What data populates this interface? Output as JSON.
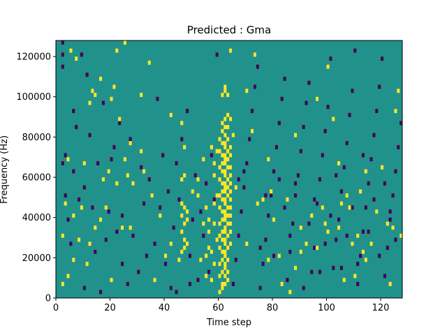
{
  "chart_data": {
    "type": "heatmap",
    "title": "Predicted : Gma",
    "xlabel": "Time step",
    "ylabel": "Frequency (Hz)",
    "xlim": [
      0,
      128
    ],
    "ylim": [
      0,
      128000
    ],
    "xticks": [
      0,
      20,
      40,
      60,
      80,
      100,
      120
    ],
    "yticks": [
      0,
      20000,
      40000,
      60000,
      80000,
      100000,
      120000
    ],
    "grid": false,
    "colors": {
      "background": "#21918c",
      "low": "#440154",
      "high": "#fde725"
    },
    "cell": {
      "time_step_width": 1,
      "frequency_height": 2000
    },
    "high_cells": [
      [
        60,
        2000
      ],
      [
        61,
        4000
      ],
      [
        61,
        6000
      ],
      [
        60,
        10000
      ],
      [
        61,
        12000
      ],
      [
        62,
        14000
      ],
      [
        60,
        16000
      ],
      [
        61,
        18000
      ],
      [
        62,
        20000
      ],
      [
        61,
        22000
      ],
      [
        60,
        24000
      ],
      [
        62,
        26000
      ],
      [
        61,
        28000
      ],
      [
        60,
        30000
      ],
      [
        61,
        32000
      ],
      [
        62,
        34000
      ],
      [
        60,
        36000
      ],
      [
        61,
        38000
      ],
      [
        62,
        40000
      ],
      [
        61,
        42000
      ],
      [
        60,
        44000
      ],
      [
        62,
        46000
      ],
      [
        61,
        48000
      ],
      [
        60,
        50000
      ],
      [
        61,
        52000
      ],
      [
        62,
        54000
      ],
      [
        61,
        56000
      ],
      [
        60,
        58000
      ],
      [
        62,
        60000
      ],
      [
        61,
        62000
      ],
      [
        60,
        64000
      ],
      [
        61,
        66000
      ],
      [
        62,
        68000
      ],
      [
        61,
        70000
      ],
      [
        60,
        72000
      ],
      [
        62,
        74000
      ],
      [
        61,
        76000
      ],
      [
        60,
        78000
      ],
      [
        61,
        82000
      ],
      [
        62,
        84000
      ],
      [
        61,
        86000
      ],
      [
        62,
        88000
      ],
      [
        61,
        100000
      ],
      [
        62,
        102000
      ],
      [
        62,
        104000
      ],
      [
        62,
        6000
      ],
      [
        63,
        8000
      ],
      [
        62,
        10000
      ],
      [
        63,
        12000
      ],
      [
        62,
        16000
      ],
      [
        63,
        18000
      ],
      [
        62,
        22000
      ],
      [
        63,
        24000
      ],
      [
        62,
        28000
      ],
      [
        63,
        30000
      ],
      [
        62,
        32000
      ],
      [
        63,
        36000
      ],
      [
        62,
        38000
      ],
      [
        63,
        40000
      ],
      [
        62,
        42000
      ],
      [
        63,
        44000
      ],
      [
        62,
        48000
      ],
      [
        63,
        50000
      ],
      [
        62,
        52000
      ],
      [
        63,
        54000
      ],
      [
        62,
        56000
      ],
      [
        63,
        58000
      ],
      [
        62,
        62000
      ],
      [
        63,
        64000
      ],
      [
        62,
        66000
      ],
      [
        63,
        68000
      ],
      [
        62,
        70000
      ],
      [
        63,
        72000
      ],
      [
        62,
        76000
      ],
      [
        63,
        78000
      ],
      [
        62,
        80000
      ],
      [
        63,
        84000
      ],
      [
        63,
        90000
      ],
      [
        63,
        100000
      ],
      [
        64,
        26000
      ],
      [
        64,
        32000
      ],
      [
        64,
        36000
      ],
      [
        64,
        40000
      ],
      [
        64,
        44000
      ],
      [
        64,
        48000
      ],
      [
        64,
        52000
      ],
      [
        64,
        56000
      ],
      [
        64,
        60000
      ],
      [
        64,
        64000
      ],
      [
        64,
        70000
      ],
      [
        64,
        74000
      ],
      [
        64,
        88000
      ],
      [
        64,
        122000
      ],
      [
        46,
        22000
      ],
      [
        47,
        24000
      ],
      [
        47,
        28000
      ],
      [
        46,
        32000
      ],
      [
        47,
        36000
      ],
      [
        46,
        40000
      ],
      [
        47,
        44000
      ],
      [
        46,
        46000
      ],
      [
        48,
        38000
      ],
      [
        48,
        26000
      ],
      [
        46,
        58000
      ],
      [
        47,
        60000
      ],
      [
        52,
        50000
      ],
      [
        48,
        42000
      ],
      [
        56,
        38000
      ],
      [
        58,
        36000
      ],
      [
        56,
        32000
      ],
      [
        56,
        24000
      ],
      [
        55,
        20000
      ],
      [
        57,
        22000
      ],
      [
        55,
        10000
      ],
      [
        57,
        8000
      ],
      [
        53,
        18000
      ],
      [
        54,
        36000
      ],
      [
        59,
        28000
      ],
      [
        58,
        16000
      ],
      [
        55,
        44000
      ],
      [
        59,
        50000
      ],
      [
        58,
        66000
      ],
      [
        57,
        74000
      ],
      [
        58,
        60000
      ],
      [
        2,
        6000
      ],
      [
        2,
        30000
      ],
      [
        4,
        10000
      ],
      [
        3,
        46000
      ],
      [
        4,
        68000
      ],
      [
        6,
        18000
      ],
      [
        8,
        28000
      ],
      [
        6,
        40000
      ],
      [
        5,
        122000
      ],
      [
        7,
        118000
      ],
      [
        9,
        44000
      ],
      [
        10,
        66000
      ],
      [
        12,
        96000
      ],
      [
        11,
        16000
      ],
      [
        12,
        26000
      ],
      [
        13,
        102000
      ],
      [
        14,
        100000
      ],
      [
        14,
        34000
      ],
      [
        16,
        38000
      ],
      [
        16,
        108000
      ],
      [
        17,
        58000
      ],
      [
        18,
        44000
      ],
      [
        19,
        62000
      ],
      [
        20,
        98000
      ],
      [
        20,
        8000
      ],
      [
        22,
        56000
      ],
      [
        21,
        104000
      ],
      [
        22,
        122000
      ],
      [
        24,
        34000
      ],
      [
        23,
        88000
      ],
      [
        25,
        68000
      ],
      [
        25,
        126000
      ],
      [
        26,
        60000
      ],
      [
        27,
        76000
      ],
      [
        27,
        34000
      ],
      [
        28,
        56000
      ],
      [
        31,
        72000
      ],
      [
        31,
        100000
      ],
      [
        32,
        62000
      ],
      [
        35,
        50000
      ],
      [
        34,
        116000
      ],
      [
        36,
        8000
      ],
      [
        38,
        40000
      ],
      [
        40,
        20000
      ],
      [
        42,
        26000
      ],
      [
        42,
        90000
      ],
      [
        45,
        18000
      ],
      [
        46,
        86000
      ],
      [
        47,
        74000
      ],
      [
        50,
        52000
      ],
      [
        52,
        58000
      ],
      [
        54,
        68000
      ],
      [
        58,
        46000
      ],
      [
        59,
        72000
      ],
      [
        65,
        80000
      ],
      [
        66,
        54000
      ],
      [
        70,
        26000
      ],
      [
        70,
        102000
      ],
      [
        72,
        82000
      ],
      [
        73,
        120000
      ],
      [
        74,
        46000
      ],
      [
        76,
        48000
      ],
      [
        78,
        18000
      ],
      [
        79,
        52000
      ],
      [
        78,
        68000
      ],
      [
        80,
        38000
      ],
      [
        82,
        20000
      ],
      [
        83,
        6000
      ],
      [
        86,
        2000
      ],
      [
        85,
        48000
      ],
      [
        88,
        14000
      ],
      [
        90,
        22000
      ],
      [
        94,
        40000
      ],
      [
        96,
        98000
      ],
      [
        98,
        44000
      ],
      [
        99,
        36000
      ],
      [
        100,
        32000
      ],
      [
        100,
        114000
      ],
      [
        102,
        88000
      ],
      [
        104,
        34000
      ],
      [
        104,
        66000
      ],
      [
        106,
        8000
      ],
      [
        107,
        50000
      ],
      [
        108,
        44000
      ],
      [
        110,
        10000
      ],
      [
        112,
        52000
      ],
      [
        114,
        18000
      ],
      [
        116,
        26000
      ],
      [
        118,
        42000
      ],
      [
        120,
        64000
      ],
      [
        122,
        36000
      ],
      [
        123,
        6000
      ],
      [
        124,
        34000
      ],
      [
        125,
        92000
      ],
      [
        126,
        102000
      ],
      [
        127,
        30000
      ],
      [
        114,
        62000
      ],
      [
        88,
        80000
      ],
      [
        90,
        34000
      ],
      [
        92,
        26000
      ],
      [
        96,
        24000
      ],
      [
        105,
        46000
      ],
      [
        109,
        26000
      ],
      [
        111,
        30000
      ],
      [
        113,
        22000
      ]
    ],
    "low_cells": [
      [
        2,
        120000
      ],
      [
        2,
        126000
      ],
      [
        2,
        114000
      ],
      [
        3,
        70000
      ],
      [
        2,
        66000
      ],
      [
        3,
        50000
      ],
      [
        4,
        38000
      ],
      [
        5,
        26000
      ],
      [
        6,
        92000
      ],
      [
        7,
        84000
      ],
      [
        6,
        62000
      ],
      [
        8,
        48000
      ],
      [
        9,
        120000
      ],
      [
        10,
        4000
      ],
      [
        10,
        54000
      ],
      [
        11,
        110000
      ],
      [
        12,
        80000
      ],
      [
        13,
        44000
      ],
      [
        14,
        22000
      ],
      [
        15,
        66000
      ],
      [
        16,
        2000
      ],
      [
        17,
        96000
      ],
      [
        18,
        28000
      ],
      [
        19,
        42000
      ],
      [
        20,
        68000
      ],
      [
        21,
        74000
      ],
      [
        22,
        32000
      ],
      [
        23,
        86000
      ],
      [
        24,
        16000
      ],
      [
        24,
        40000
      ],
      [
        26,
        6000
      ],
      [
        27,
        78000
      ],
      [
        28,
        30000
      ],
      [
        30,
        12000
      ],
      [
        31,
        64000
      ],
      [
        32,
        46000
      ],
      [
        33,
        20000
      ],
      [
        34,
        58000
      ],
      [
        36,
        26000
      ],
      [
        37,
        98000
      ],
      [
        38,
        44000
      ],
      [
        39,
        70000
      ],
      [
        40,
        16000
      ],
      [
        41,
        52000
      ],
      [
        42,
        4000
      ],
      [
        43,
        34000
      ],
      [
        44,
        66000
      ],
      [
        46,
        78000
      ],
      [
        48,
        92000
      ],
      [
        49,
        20000
      ],
      [
        50,
        38000
      ],
      [
        51,
        60000
      ],
      [
        52,
        8000
      ],
      [
        53,
        42000
      ],
      [
        54,
        30000
      ],
      [
        55,
        56000
      ],
      [
        56,
        12000
      ],
      [
        57,
        70000
      ],
      [
        58,
        48000
      ],
      [
        59,
        120000
      ],
      [
        65,
        6000
      ],
      [
        66,
        18000
      ],
      [
        67,
        30000
      ],
      [
        68,
        42000
      ],
      [
        69,
        54000
      ],
      [
        70,
        66000
      ],
      [
        71,
        78000
      ],
      [
        72,
        92000
      ],
      [
        73,
        104000
      ],
      [
        74,
        114000
      ],
      [
        75,
        4000
      ],
      [
        76,
        16000
      ],
      [
        77,
        28000
      ],
      [
        78,
        40000
      ],
      [
        79,
        50000
      ],
      [
        80,
        62000
      ],
      [
        81,
        74000
      ],
      [
        82,
        86000
      ],
      [
        83,
        98000
      ],
      [
        84,
        108000
      ],
      [
        85,
        8000
      ],
      [
        86,
        22000
      ],
      [
        87,
        36000
      ],
      [
        88,
        50000
      ],
      [
        89,
        60000
      ],
      [
        90,
        72000
      ],
      [
        91,
        84000
      ],
      [
        92,
        96000
      ],
      [
        93,
        106000
      ],
      [
        94,
        12000
      ],
      [
        95,
        24000
      ],
      [
        96,
        46000
      ],
      [
        97,
        58000
      ],
      [
        98,
        70000
      ],
      [
        99,
        82000
      ],
      [
        100,
        94000
      ],
      [
        101,
        118000
      ],
      [
        102,
        14000
      ],
      [
        103,
        28000
      ],
      [
        104,
        38000
      ],
      [
        105,
        52000
      ],
      [
        106,
        64000
      ],
      [
        107,
        76000
      ],
      [
        108,
        90000
      ],
      [
        109,
        102000
      ],
      [
        110,
        122000
      ],
      [
        111,
        6000
      ],
      [
        112,
        20000
      ],
      [
        113,
        32000
      ],
      [
        114,
        44000
      ],
      [
        115,
        56000
      ],
      [
        116,
        68000
      ],
      [
        117,
        80000
      ],
      [
        118,
        92000
      ],
      [
        119,
        104000
      ],
      [
        120,
        118000
      ],
      [
        121,
        10000
      ],
      [
        122,
        24000
      ],
      [
        123,
        38000
      ],
      [
        124,
        50000
      ],
      [
        125,
        62000
      ],
      [
        126,
        74000
      ],
      [
        127,
        86000
      ],
      [
        44,
        2000
      ],
      [
        45,
        48000
      ],
      [
        49,
        6000
      ],
      [
        67,
        58000
      ],
      [
        69,
        62000
      ],
      [
        75,
        24000
      ],
      [
        77,
        50000
      ],
      [
        80,
        20000
      ],
      [
        82,
        58000
      ],
      [
        84,
        44000
      ],
      [
        86,
        30000
      ],
      [
        88,
        56000
      ],
      [
        91,
        4000
      ],
      [
        93,
        36000
      ],
      [
        95,
        48000
      ],
      [
        97,
        12000
      ],
      [
        99,
        26000
      ],
      [
        101,
        40000
      ],
      [
        103,
        60000
      ],
      [
        105,
        14000
      ],
      [
        107,
        30000
      ],
      [
        109,
        44000
      ],
      [
        111,
        16000
      ],
      [
        113,
        70000
      ],
      [
        115,
        32000
      ],
      [
        117,
        48000
      ],
      [
        119,
        20000
      ],
      [
        121,
        56000
      ],
      [
        123,
        42000
      ],
      [
        125,
        28000
      ]
    ]
  }
}
